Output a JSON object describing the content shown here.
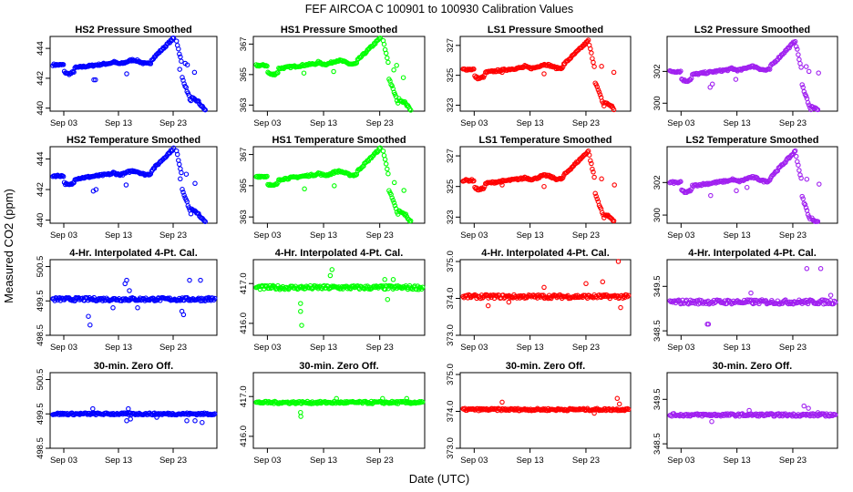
{
  "figure": {
    "title": "FEF   AIRCOA C   100901 to 100930   Calibration Values",
    "xlabel": "Date (UTC)",
    "ylabel": "Measured CO2 (ppm)"
  },
  "chart_data": [
    {
      "type": "scatter",
      "title": "HS2 Pressure Smoothed",
      "color": "#0000ff",
      "ylim": [
        439.8,
        444.8
      ],
      "yticks": [
        440,
        442,
        444
      ],
      "ytick_labels": [
        "440",
        "442",
        "444"
      ],
      "xlim": [
        0.5,
        31
      ],
      "xticks": [
        3,
        13,
        23
      ],
      "xtick_labels": [
        "Sep 03",
        "Sep 13",
        "Sep 23"
      ],
      "series": "drift",
      "base": 442.9,
      "range": 4,
      "outliers": [
        [
          8.5,
          441.9
        ],
        [
          8.8,
          441.9
        ],
        [
          14.5,
          442.3
        ],
        [
          24.2,
          442.6
        ],
        [
          25.2,
          443.0
        ],
        [
          25.6,
          442.9
        ],
        [
          26.9,
          442.4
        ]
      ]
    },
    {
      "type": "scatter",
      "title": "HS1 Pressure Smoothed",
      "color": "#00ff00",
      "ylim": [
        362.6,
        367.5
      ],
      "yticks": [
        363,
        365,
        367
      ],
      "ytick_labels": [
        "363",
        "365",
        "367"
      ],
      "xlim": [
        0.5,
        31
      ],
      "xticks": [
        3,
        13,
        23
      ],
      "xtick_labels": [
        "Sep 03",
        "Sep 13",
        "Sep 23"
      ],
      "series": "drift",
      "base": 365.6,
      "range": 4,
      "outliers": [
        [
          9.5,
          365.1
        ],
        [
          14.8,
          365.2
        ],
        [
          25.5,
          365.3
        ],
        [
          26.0,
          365.6
        ],
        [
          27.2,
          364.8
        ]
      ]
    },
    {
      "type": "scatter",
      "title": "LS1 Pressure Smoothed",
      "color": "#ff0000",
      "ylim": [
        322.6,
        327.6
      ],
      "yticks": [
        323,
        325,
        327
      ],
      "ytick_labels": [
        "323",
        "325",
        "327"
      ],
      "xlim": [
        0.5,
        31
      ],
      "xticks": [
        3,
        13,
        23
      ],
      "xtick_labels": [
        "Sep 03",
        "Sep 13",
        "Sep 23"
      ],
      "series": "drift",
      "base": 325.4,
      "range": 4,
      "outliers": [
        [
          8.0,
          325.2
        ],
        [
          15.5,
          325.1
        ],
        [
          25.8,
          325.6
        ],
        [
          28.0,
          325.2
        ]
      ]
    },
    {
      "type": "scatter",
      "title": "LS2 Pressure Smoothed",
      "color": "#a020f0",
      "ylim": [
        299.5,
        304.2
      ],
      "yticks": [
        300,
        302
      ],
      "ytick_labels": [
        "300",
        "302"
      ],
      "xlim": [
        0.5,
        31
      ],
      "xticks": [
        3,
        13,
        23
      ],
      "xtick_labels": [
        "Sep 03",
        "Sep 13",
        "Sep 23"
      ],
      "series": "drift",
      "base": 302.0,
      "range": 4,
      "outliers": [
        [
          8.2,
          301.0
        ],
        [
          8.6,
          301.2
        ],
        [
          12.8,
          301.5
        ],
        [
          25.4,
          302.3
        ],
        [
          25.9,
          302.0
        ],
        [
          27.6,
          301.9
        ]
      ]
    },
    {
      "type": "scatter",
      "title": "HS2 Temperature Smoothed",
      "color": "#0000ff",
      "ylim": [
        439.8,
        444.8
      ],
      "yticks": [
        440,
        442,
        444
      ],
      "ytick_labels": [
        "440",
        "442",
        "444"
      ],
      "xlim": [
        0.5,
        31
      ],
      "xticks": [
        3,
        13,
        23
      ],
      "xtick_labels": [
        "Sep 03",
        "Sep 13",
        "Sep 23"
      ],
      "series": "drift",
      "base": 442.9,
      "range": 4,
      "outliers": [
        [
          8.4,
          441.9
        ],
        [
          8.9,
          442.0
        ],
        [
          14.4,
          442.3
        ],
        [
          24.3,
          442.7
        ],
        [
          25.4,
          443.0
        ],
        [
          27.0,
          442.4
        ]
      ]
    },
    {
      "type": "scatter",
      "title": "HS1 Temperature Smoothed",
      "color": "#00ff00",
      "ylim": [
        362.6,
        367.5
      ],
      "yticks": [
        363,
        365,
        367
      ],
      "ytick_labels": [
        "363",
        "365",
        "367"
      ],
      "xlim": [
        0.5,
        31
      ],
      "xticks": [
        3,
        13,
        23
      ],
      "xtick_labels": [
        "Sep 03",
        "Sep 13",
        "Sep 23"
      ],
      "series": "drift",
      "base": 365.6,
      "range": 4,
      "outliers": [
        [
          9.6,
          364.8
        ],
        [
          14.9,
          365.0
        ],
        [
          25.6,
          365.2
        ],
        [
          27.3,
          364.7
        ]
      ]
    },
    {
      "type": "scatter",
      "title": "LS1 Temperature Smoothed",
      "color": "#ff0000",
      "ylim": [
        322.6,
        327.6
      ],
      "yticks": [
        323,
        325,
        327
      ],
      "ytick_labels": [
        "323",
        "325",
        "327"
      ],
      "xlim": [
        0.5,
        31
      ],
      "xticks": [
        3,
        13,
        23
      ],
      "xtick_labels": [
        "Sep 03",
        "Sep 13",
        "Sep 23"
      ],
      "series": "drift",
      "base": 325.4,
      "range": 4,
      "outliers": [
        [
          8.0,
          325.1
        ],
        [
          15.5,
          325.0
        ],
        [
          25.8,
          325.5
        ],
        [
          28.1,
          325.1
        ]
      ]
    },
    {
      "type": "scatter",
      "title": "LS2 Temperature Smoothed",
      "color": "#a020f0",
      "ylim": [
        299.5,
        304.2
      ],
      "yticks": [
        300,
        302
      ],
      "ytick_labels": [
        "300",
        "302"
      ],
      "xlim": [
        0.5,
        31
      ],
      "xticks": [
        3,
        13,
        23
      ],
      "xtick_labels": [
        "Sep 03",
        "Sep 13",
        "Sep 23"
      ],
      "series": "drift",
      "base": 302.0,
      "range": 4,
      "outliers": [
        [
          8.3,
          301.2
        ],
        [
          12.9,
          301.5
        ],
        [
          14.8,
          301.7
        ],
        [
          25.5,
          302.2
        ],
        [
          27.7,
          301.9
        ]
      ]
    },
    {
      "type": "scatter",
      "title": "4-Hr. Interpolated 4-Pt. Cal.",
      "color": "#0000ff",
      "ylim": [
        498.5,
        500.7
      ],
      "yticks": [
        498.5,
        499.5,
        500.5
      ],
      "ytick_labels": [
        "498.5",
        "499.5",
        "500.5"
      ],
      "xlim": [
        0.5,
        31
      ],
      "xticks": [
        3,
        13,
        23
      ],
      "xtick_labels": [
        "Sep 03",
        "Sep 13",
        "Sep 23"
      ],
      "series": "flat",
      "base": 499.55,
      "range": 0.1,
      "outliers": [
        [
          7.5,
          499.05
        ],
        [
          7.8,
          498.8
        ],
        [
          12.0,
          499.3
        ],
        [
          14.2,
          500.0
        ],
        [
          14.5,
          500.1
        ],
        [
          15.0,
          499.8
        ],
        [
          16.5,
          499.3
        ],
        [
          24.6,
          499.2
        ],
        [
          24.9,
          499.1
        ],
        [
          26.0,
          500.1
        ],
        [
          28.0,
          500.1
        ],
        [
          29.5,
          499.6
        ]
      ]
    },
    {
      "type": "scatter",
      "title": "4-Hr. Interpolated 4-Pt. Cal.",
      "color": "#00ff00",
      "ylim": [
        415.7,
        417.6
      ],
      "yticks": [
        416.0,
        417.0
      ],
      "ytick_labels": [
        "416.0",
        "417.0"
      ],
      "xlim": [
        0.5,
        31
      ],
      "xticks": [
        3,
        13,
        23
      ],
      "xtick_labels": [
        "Sep 03",
        "Sep 13",
        "Sep 23"
      ],
      "series": "flat",
      "base": 416.9,
      "range": 0.1,
      "outliers": [
        [
          8.9,
          416.5
        ],
        [
          8.9,
          416.3
        ],
        [
          9.1,
          415.95
        ],
        [
          14.2,
          417.2
        ],
        [
          14.5,
          417.35
        ],
        [
          23.9,
          417.1
        ],
        [
          24.4,
          416.6
        ],
        [
          25.4,
          417.1
        ]
      ]
    },
    {
      "type": "scatter",
      "title": "4-Hr. Interpolated 4-Pt. Cal.",
      "color": "#ff0000",
      "ylim": [
        373.0,
        375.05
      ],
      "yticks": [
        373.0,
        374.0,
        375.0
      ],
      "ytick_labels": [
        "373.0",
        "374.0",
        "375.0"
      ],
      "xlim": [
        0.5,
        31
      ],
      "xticks": [
        3,
        13,
        23
      ],
      "xtick_labels": [
        "Sep 03",
        "Sep 13",
        "Sep 23"
      ],
      "series": "flat",
      "base": 374.05,
      "range": 0.1,
      "outliers": [
        [
          5.5,
          373.8
        ],
        [
          9.2,
          373.9
        ],
        [
          15.5,
          374.3
        ],
        [
          23.0,
          374.4
        ],
        [
          26.0,
          374.45
        ],
        [
          28.8,
          375.0
        ],
        [
          29.2,
          373.75
        ]
      ]
    },
    {
      "type": "scatter",
      "title": "4-Hr. Interpolated 4-Pt. Cal.",
      "color": "#a020f0",
      "ylim": [
        348.4,
        350.1
      ],
      "yticks": [
        348.5,
        349.5
      ],
      "ytick_labels": [
        "348.5",
        "349.5"
      ],
      "xlim": [
        0.5,
        31
      ],
      "xticks": [
        3,
        13,
        23
      ],
      "xtick_labels": [
        "Sep 03",
        "Sep 13",
        "Sep 23"
      ],
      "series": "flat",
      "base": 349.15,
      "range": 0.1,
      "outliers": [
        [
          7.7,
          348.65
        ],
        [
          7.9,
          348.65
        ],
        [
          15.5,
          349.35
        ],
        [
          25.5,
          349.9
        ],
        [
          28.0,
          349.9
        ],
        [
          29.8,
          349.3
        ]
      ]
    },
    {
      "type": "scatter",
      "title": "30-min. Zero Off.",
      "color": "#0000ff",
      "ylim": [
        498.5,
        500.7
      ],
      "yticks": [
        498.5,
        499.5,
        500.5
      ],
      "ytick_labels": [
        "498.5",
        "499.5",
        "500.5"
      ],
      "xlim": [
        0.5,
        31
      ],
      "xticks": [
        3,
        13,
        23
      ],
      "xtick_labels": [
        "Sep 03",
        "Sep 13",
        "Sep 23"
      ],
      "series": "flat",
      "base": 499.5,
      "range": 0.06,
      "outliers": [
        [
          8.3,
          499.65
        ],
        [
          14.5,
          499.3
        ],
        [
          14.8,
          499.65
        ],
        [
          15.2,
          499.35
        ],
        [
          20.0,
          499.4
        ],
        [
          25.5,
          499.3
        ],
        [
          27.0,
          499.3
        ],
        [
          28.3,
          499.25
        ]
      ]
    },
    {
      "type": "scatter",
      "title": "30-min. Zero Off.",
      "color": "#00ff00",
      "ylim": [
        415.7,
        417.6
      ],
      "yticks": [
        416.0,
        417.0
      ],
      "ytick_labels": [
        "416.0",
        "417.0"
      ],
      "xlim": [
        0.5,
        31
      ],
      "xticks": [
        3,
        13,
        23
      ],
      "xtick_labels": [
        "Sep 03",
        "Sep 13",
        "Sep 23"
      ],
      "series": "flat",
      "base": 416.85,
      "range": 0.06,
      "outliers": [
        [
          8.9,
          416.6
        ],
        [
          8.95,
          416.5
        ],
        [
          15.3,
          416.95
        ],
        [
          23.5,
          416.95
        ],
        [
          27.8,
          416.95
        ]
      ]
    },
    {
      "type": "scatter",
      "title": "30-min. Zero Off.",
      "color": "#ff0000",
      "ylim": [
        373.0,
        375.05
      ],
      "yticks": [
        373.0,
        374.0,
        375.0
      ],
      "ytick_labels": [
        "373.0",
        "374.0",
        "375.0"
      ],
      "xlim": [
        0.5,
        31
      ],
      "xticks": [
        3,
        13,
        23
      ],
      "xtick_labels": [
        "Sep 03",
        "Sep 13",
        "Sep 23"
      ],
      "series": "flat",
      "base": 374.05,
      "range": 0.06,
      "outliers": [
        [
          8.0,
          374.25
        ],
        [
          24.5,
          373.95
        ],
        [
          28.6,
          374.35
        ],
        [
          29.0,
          374.2
        ]
      ]
    },
    {
      "type": "scatter",
      "title": "30-min. Zero Off.",
      "color": "#a020f0",
      "ylim": [
        348.4,
        350.1
      ],
      "yticks": [
        348.5,
        349.5
      ],
      "ytick_labels": [
        "348.5",
        "349.5"
      ],
      "xlim": [
        0.5,
        31
      ],
      "xticks": [
        3,
        13,
        23
      ],
      "xtick_labels": [
        "Sep 03",
        "Sep 13",
        "Sep 23"
      ],
      "series": "flat",
      "base": 349.15,
      "range": 0.06,
      "outliers": [
        [
          8.5,
          349.0
        ],
        [
          15.2,
          349.25
        ],
        [
          25.0,
          349.35
        ],
        [
          25.8,
          349.3
        ],
        [
          27.5,
          349.2
        ]
      ]
    }
  ]
}
